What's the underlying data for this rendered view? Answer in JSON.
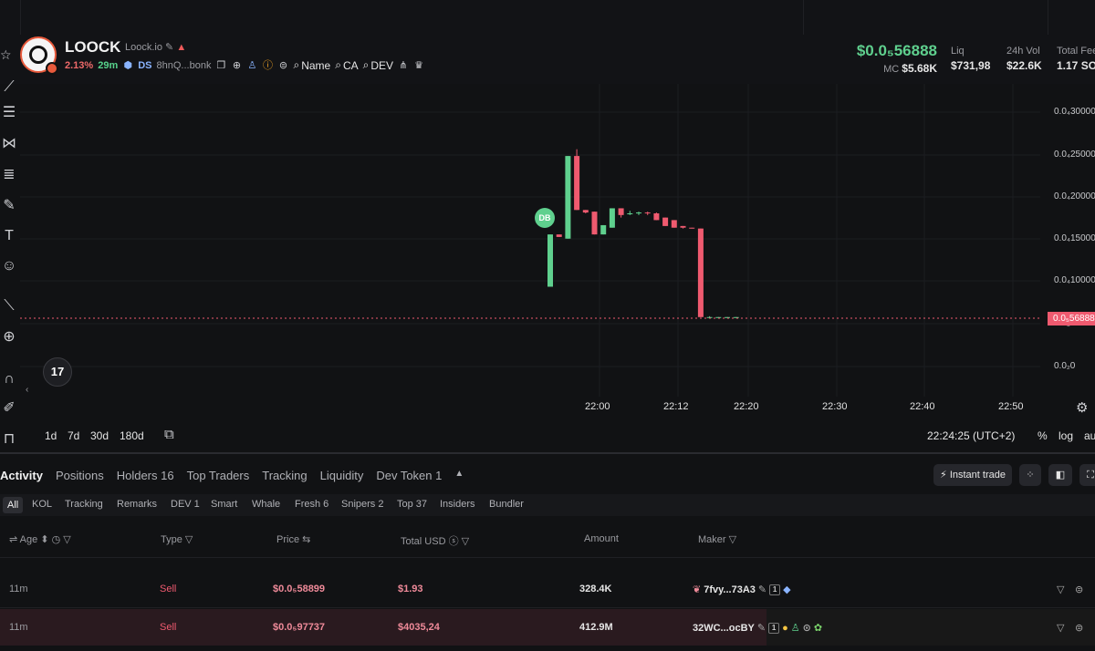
{
  "token": {
    "name": "LOOCK",
    "domain": "Loock.io",
    "change_pct": "2.13%",
    "age": "29m",
    "ds_label": "DS",
    "address": "8hnQ...bonk",
    "search_items": [
      "Name",
      "CA",
      "DEV"
    ]
  },
  "stats": {
    "price": "$0.0₅56888",
    "mc_label": "MC",
    "mc_value": "$5.68K",
    "liq_label": "Liq",
    "liq_value": "$731,98",
    "vol_label": "24h Vol",
    "vol_value": "$22.6K",
    "fees_label": "Total Fee",
    "fees_value": "1.17 SO"
  },
  "chart": {
    "marker_label": "DB",
    "price_tag": "0.0₅56888",
    "y_ticks": [
      "0.0₄30000",
      "0.0₄25000",
      "0.0₄20000",
      "0.0₄15000",
      "0.0₄10000",
      "0.0₅5",
      "0.0₂0"
    ],
    "x_ticks": [
      "22:00",
      "22:12",
      "22:20",
      "22:30",
      "22:40",
      "22:50"
    ],
    "tv_logo": "17",
    "ranges": [
      "1d",
      "7d",
      "30d",
      "180d"
    ],
    "clock": "22:24:25 (UTC+2)",
    "scale_opts": [
      "%",
      "log",
      "au"
    ]
  },
  "tabs": [
    "Activity",
    "Positions",
    "Holders 16",
    "Top Traders",
    "Tracking",
    "Liquidity",
    "Dev Token 1"
  ],
  "instant_trade": "Instant trade",
  "subtabs": [
    "All",
    "KOL",
    "Tracking",
    "Remarks",
    "DEV 1",
    "Smart",
    "Whale",
    "Fresh 6",
    "Snipers 2",
    "Top 37",
    "Insiders",
    "Bundler"
  ],
  "columns": [
    "Age",
    "Type",
    "Price",
    "Total USD",
    "Amount",
    "Maker"
  ],
  "rows": [
    {
      "age": "11m",
      "type": "Sell",
      "price": "$0.0₅58899",
      "usd": "$1.93",
      "amount": "328.4K",
      "maker": "7fvy...73A3",
      "badge": "1"
    },
    {
      "age": "11m",
      "type": "Sell",
      "price": "$0.0₅97737",
      "usd": "$4035,24",
      "amount": "412.9M",
      "maker": "32WC...ocBY",
      "badge": "1"
    }
  ],
  "colors": {
    "up": "#5fd08e",
    "down": "#ef5a6f",
    "bg": "#111214"
  },
  "chart_data": {
    "type": "candlestick",
    "x_ticks": [
      "22:00",
      "22:12",
      "22:20",
      "22:30",
      "22:40",
      "22:50"
    ],
    "candles": [
      {
        "o": 9.3e-06,
        "h": 1.55e-05,
        "l": 9.3e-06,
        "c": 1.55e-05
      },
      {
        "o": 1.55e-05,
        "h": 1.55e-05,
        "l": 1.52e-05,
        "c": 1.52e-05
      },
      {
        "o": 1.5e-05,
        "h": 2.48e-05,
        "l": 1.5e-05,
        "c": 2.48e-05
      },
      {
        "o": 2.48e-05,
        "h": 2.56e-05,
        "l": 1.84e-05,
        "c": 1.84e-05
      },
      {
        "o": 1.84e-05,
        "h": 1.84e-05,
        "l": 1.8e-05,
        "c": 1.81e-05
      },
      {
        "o": 1.82e-05,
        "h": 1.82e-05,
        "l": 1.55e-05,
        "c": 1.55e-05
      },
      {
        "o": 1.55e-05,
        "h": 1.66e-05,
        "l": 1.55e-05,
        "c": 1.66e-05
      },
      {
        "o": 1.63e-05,
        "h": 1.86e-05,
        "l": 1.63e-05,
        "c": 1.86e-05
      },
      {
        "o": 1.86e-05,
        "h": 1.86e-05,
        "l": 1.75e-05,
        "c": 1.78e-05
      },
      {
        "o": 1.8e-05,
        "h": 1.83e-05,
        "l": 1.78e-05,
        "c": 1.8e-05
      },
      {
        "o": 1.8e-05,
        "h": 1.82e-05,
        "l": 1.78e-05,
        "c": 1.81e-05
      },
      {
        "o": 1.81e-05,
        "h": 1.82e-05,
        "l": 1.78e-05,
        "c": 1.8e-05
      },
      {
        "o": 1.8e-05,
        "h": 1.81e-05,
        "l": 1.72e-05,
        "c": 1.72e-05
      },
      {
        "o": 1.75e-05,
        "h": 1.75e-05,
        "l": 1.65e-05,
        "c": 1.65e-05
      },
      {
        "o": 1.72e-05,
        "h": 1.72e-05,
        "l": 1.63e-05,
        "c": 1.63e-05
      },
      {
        "o": 1.65e-05,
        "h": 1.65e-05,
        "l": 1.62e-05,
        "c": 1.63e-05
      },
      {
        "o": 1.63e-05,
        "h": 1.63e-05,
        "l": 1.62e-05,
        "c": 1.62e-05
      },
      {
        "o": 1.62e-05,
        "h": 1.62e-05,
        "l": 5.7e-06,
        "c": 5.7e-06
      },
      {
        "o": 5.7e-06,
        "h": 5.8e-06,
        "l": 5.6e-06,
        "c": 5.7e-06
      },
      {
        "o": 5.7e-06,
        "h": 5.7e-06,
        "l": 5.6e-06,
        "c": 5.7e-06
      },
      {
        "o": 5.7e-06,
        "h": 5.7e-06,
        "l": 5.6e-06,
        "c": 5.7e-06
      },
      {
        "o": 5.7e-06,
        "h": 5.7e-06,
        "l": 5.6e-06,
        "c": 5.7e-06
      }
    ],
    "ylim": [
      5e-07,
      3.3e-05
    ]
  }
}
